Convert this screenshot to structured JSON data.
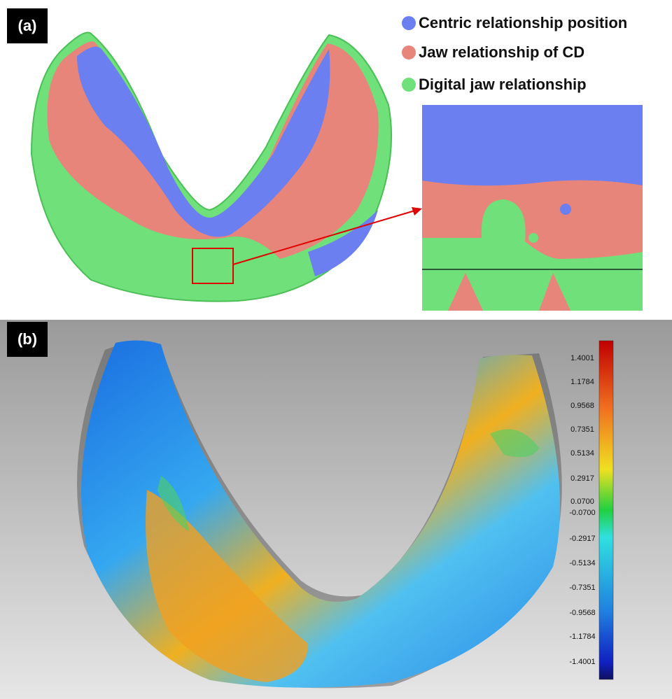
{
  "panel_a": {
    "label": "(a)",
    "legend": [
      {
        "text": "Centric relationship position",
        "color": "#6b7ff0"
      },
      {
        "text": "Jaw relationship of CD",
        "color": "#e8857a"
      },
      {
        "text": "Digital jaw relationship",
        "color": "#6fe07a"
      }
    ]
  },
  "panel_b": {
    "label": "(b)",
    "scale_labels": [
      "1.4001",
      "1.1784",
      "0.9568",
      "0.7351",
      "0.5134",
      "0.2917",
      "0.0700",
      "-0.0700",
      "-0.2917",
      "-0.5134",
      "-0.7351",
      "-0.9568",
      "-1.1784",
      "-1.4001"
    ]
  }
}
